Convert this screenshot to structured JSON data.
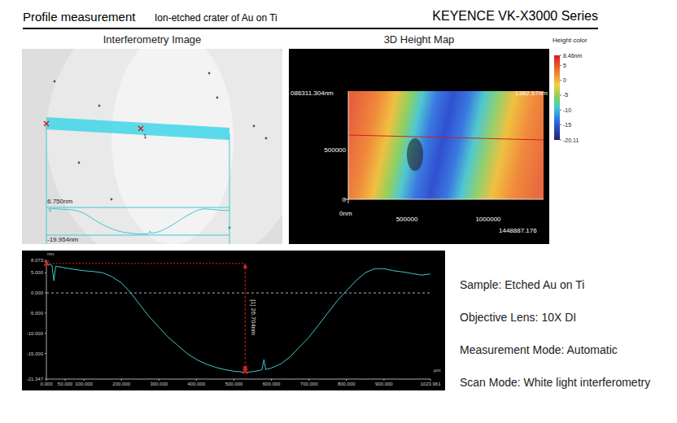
{
  "header": {
    "title": "Profile measurement",
    "subtitle": "Ion-etched crater of Au on Ti",
    "brand": "KEYENCE VK-X3000 Series"
  },
  "interferometry_image": {
    "title": "Interferometry Image",
    "marker": "1",
    "profile_top_label": "6.750nm",
    "profile_bottom_label": "-19.954nm"
  },
  "height_map": {
    "title": "3D Height Map",
    "corner_label": "1382.57nm",
    "y_labels": [
      "086311.304nm",
      "500000",
      "0"
    ],
    "x_labels": [
      "0nm",
      "500000",
      "1000000",
      "1448887.176"
    ],
    "colorbar": {
      "title": "Height color",
      "range": [
        -20.11,
        8.46
      ],
      "ticks": [
        {
          "value": 8.46,
          "label": "8.46nm"
        },
        5,
        0,
        -5,
        -10,
        -15,
        -20.11
      ]
    }
  },
  "chart_data": {
    "type": "line",
    "x_unit": "µm",
    "y_unit": "nm",
    "color": "#3ec8c8",
    "grid": false,
    "zero_line": 0,
    "x": [
      0,
      10,
      15,
      20,
      25,
      50,
      75,
      100,
      125,
      150,
      175,
      200,
      225,
      250,
      275,
      300,
      325,
      350,
      375,
      400,
      425,
      450,
      475,
      500,
      525,
      530,
      550,
      570,
      575,
      580,
      585,
      600,
      625,
      650,
      675,
      700,
      725,
      750,
      775,
      800,
      825,
      850,
      875,
      900,
      925,
      950,
      975,
      1000,
      1023.961
    ],
    "values": [
      7.2,
      7.0,
      6.8,
      3.0,
      6.6,
      6.2,
      5.8,
      5.5,
      5.3,
      5.0,
      4.0,
      2.5,
      0.0,
      -3.0,
      -6.0,
      -8.5,
      -11.0,
      -13.0,
      -15.0,
      -16.5,
      -17.6,
      -18.4,
      -19.0,
      -19.4,
      -19.6,
      -19.7,
      -19.5,
      -19.2,
      -19.0,
      -16.5,
      -19.0,
      -18.6,
      -17.6,
      -15.8,
      -13.4,
      -11.0,
      -8.0,
      -5.0,
      -2.0,
      0.5,
      3.0,
      5.0,
      6.0,
      6.0,
      5.5,
      5.2,
      4.8,
      4.4,
      4.7
    ],
    "xlim": [
      0,
      1023.961
    ],
    "ylim": [
      -21.347,
      8.073
    ],
    "xticks": [
      {
        "value": 0,
        "label": "0.000"
      },
      {
        "value": 50,
        "label": "50.000"
      },
      {
        "value": 100,
        "label": "100.000"
      },
      {
        "value": 200,
        "label": "200.000"
      },
      {
        "value": 300,
        "label": "300.000"
      },
      {
        "value": 400,
        "label": "400.000"
      },
      {
        "value": 500,
        "label": "500.000"
      },
      {
        "value": 600,
        "label": "600.000"
      },
      {
        "value": 700,
        "label": "700.000"
      },
      {
        "value": 800,
        "label": "800.000"
      },
      {
        "value": 900,
        "label": "900.000"
      },
      1023.961
    ],
    "yticks": [
      8.073,
      {
        "value": 5,
        "label": "5.000"
      },
      {
        "value": 0,
        "label": "0.000"
      },
      {
        "value": -5,
        "label": "-5.000"
      },
      {
        "value": -10,
        "label": "-10.000"
      },
      {
        "value": -15,
        "label": "-15.000"
      },
      -21.347
    ],
    "annotation": {
      "label": "[1] 26.704nm",
      "x_start": 0,
      "x": 530,
      "y_top": 7.3,
      "y_bottom": -19.404,
      "color": "#e02020"
    }
  },
  "details": [
    "Sample: Etched Au on Ti",
    "Objective Lens: 10X DI",
    "Measurement Mode: Automatic",
    "Scan Mode: White light interferometry"
  ]
}
